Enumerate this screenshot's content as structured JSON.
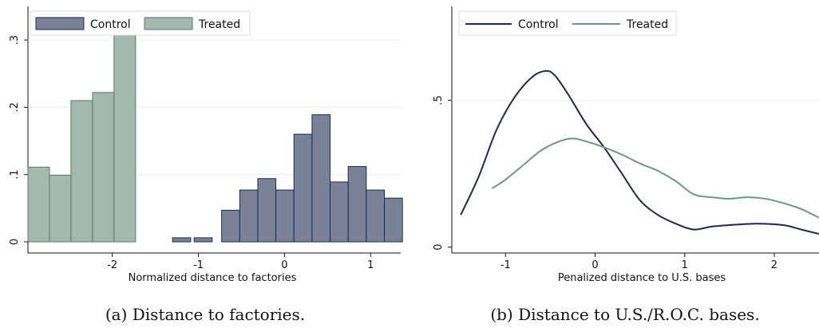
{
  "colors": {
    "control": "#7a8299",
    "control_edge": "#1e2a48",
    "treated": "#a3b9b0",
    "treated_edge": "#557a6c",
    "control_line": "#1c2850",
    "treated_line": "#6e9688",
    "grid": "#e8eef0"
  },
  "chart_data": [
    {
      "type": "bar",
      "subtype": "histogram",
      "xlabel": "Normalized distance to factories",
      "ylabel": "",
      "xlim": [
        -2.98,
        1.35
      ],
      "ylim": [
        0,
        0.35
      ],
      "xticks": [
        -2,
        -1,
        0,
        1
      ],
      "xtick_labels": [
        "-2",
        "-1",
        "0",
        "1"
      ],
      "yticks": [
        0,
        0.1,
        0.2,
        0.3
      ],
      "ytick_labels": [
        "0",
        ".1",
        ".2",
        ".3"
      ],
      "grid": true,
      "legend_position": "top-left",
      "caption": "(a) Distance to factories.",
      "bin_width": 0.25,
      "series": [
        {
          "name": "Control",
          "bins": [
            {
              "x0": -1.3,
              "y": 0.006
            },
            {
              "x0": -1.05,
              "y": 0.006
            },
            {
              "x0": -0.73,
              "y": 0.047
            },
            {
              "x0": -0.52,
              "y": 0.077
            },
            {
              "x0": -0.31,
              "y": 0.094
            },
            {
              "x0": -0.1,
              "y": 0.077
            },
            {
              "x0": 0.11,
              "y": 0.16
            },
            {
              "x0": 0.32,
              "y": 0.189
            },
            {
              "x0": 0.53,
              "y": 0.089
            },
            {
              "x0": 0.74,
              "y": 0.112
            },
            {
              "x0": 0.95,
              "y": 0.077
            },
            {
              "x0": 1.16,
              "y": 0.065
            }
          ]
        },
        {
          "name": "Treated",
          "bins": [
            {
              "x0": -2.98,
              "y": 0.111
            },
            {
              "x0": -2.73,
              "y": 0.099
            },
            {
              "x0": -2.48,
              "y": 0.21
            },
            {
              "x0": -2.23,
              "y": 0.222
            },
            {
              "x0": -1.98,
              "y": 0.33
            }
          ]
        }
      ]
    },
    {
      "type": "line",
      "subtype": "density",
      "xlabel": "Penalized distance to U.S. bases",
      "ylabel": "",
      "xlim": [
        -1.6,
        2.5
      ],
      "ylim": [
        -0.02,
        0.82
      ],
      "xticks": [
        -1,
        0,
        1,
        2
      ],
      "xtick_labels": [
        "-1",
        "0",
        "1",
        "2"
      ],
      "yticks": [
        0,
        0.5
      ],
      "ytick_labels": [
        "0",
        ".5"
      ],
      "grid": true,
      "legend_position": "top-left",
      "caption": "(b) Distance to U.S./R.O.C. bases.",
      "series": [
        {
          "name": "Control",
          "x": [
            -1.5,
            -1.3,
            -1.1,
            -0.9,
            -0.7,
            -0.55,
            -0.45,
            -0.3,
            -0.1,
            0.1,
            0.3,
            0.5,
            0.7,
            0.9,
            1.1,
            1.3,
            1.5,
            1.8,
            2.1,
            2.3,
            2.5
          ],
          "y": [
            0.11,
            0.24,
            0.4,
            0.51,
            0.58,
            0.6,
            0.585,
            0.52,
            0.42,
            0.34,
            0.25,
            0.16,
            0.11,
            0.08,
            0.06,
            0.07,
            0.075,
            0.08,
            0.075,
            0.06,
            0.045
          ]
        },
        {
          "name": "Treated",
          "x": [
            -1.15,
            -1.0,
            -0.8,
            -0.6,
            -0.4,
            -0.25,
            -0.1,
            0.1,
            0.3,
            0.5,
            0.7,
            0.9,
            1.1,
            1.3,
            1.5,
            1.7,
            1.9,
            2.1,
            2.3,
            2.5
          ],
          "y": [
            0.2,
            0.23,
            0.28,
            0.33,
            0.36,
            0.37,
            0.36,
            0.34,
            0.315,
            0.285,
            0.26,
            0.225,
            0.18,
            0.17,
            0.165,
            0.17,
            0.165,
            0.15,
            0.13,
            0.1
          ]
        }
      ]
    }
  ]
}
